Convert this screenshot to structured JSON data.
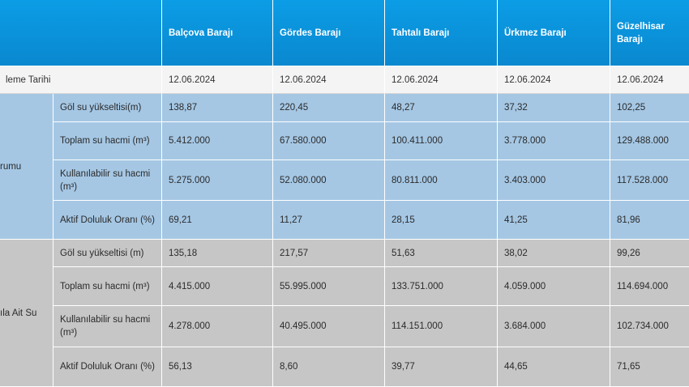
{
  "header": {
    "corner": "",
    "dams": [
      "Balçova Barajı",
      "Gördes Barajı",
      "Tahtalı Barajı",
      "Ürkmez Barajı",
      "Güzelhisar Barajı"
    ]
  },
  "date_row": {
    "label": "leme Tarihi",
    "values": [
      "12.06.2024",
      "12.06.2024",
      "12.06.2024",
      "12.06.2024",
      "12.06.2024"
    ]
  },
  "current_group": {
    "label": "rumu",
    "rows": [
      {
        "metric": "Göl su yükseltisi(m)",
        "values": [
          "138,87",
          "220,45",
          "48,27",
          "37,32",
          "102,25"
        ]
      },
      {
        "metric": "Toplam su hacmi (m³)",
        "values": [
          "5.412.000",
          "67.580.000",
          "100.411.000",
          "3.778.000",
          "129.488.000"
        ]
      },
      {
        "metric": "Kullanılabilir su hacmi (m³)",
        "values": [
          "5.275.000",
          "52.080.000",
          "80.811.000",
          "3.403.000",
          "117.528.000"
        ]
      },
      {
        "metric": "Aktif Doluluk Oranı (%)",
        "values": [
          "69,21",
          "11,27",
          "28,15",
          "41,25",
          "81,96"
        ]
      }
    ]
  },
  "previous_group": {
    "label": "ıla Ait Su",
    "rows": [
      {
        "metric": "Göl su yükseltisi (m)",
        "values": [
          "135,18",
          "217,57",
          "51,63",
          "38,02",
          "99,26"
        ]
      },
      {
        "metric": "Toplam su hacmi (m³)",
        "values": [
          "4.415.000",
          "55.995.000",
          "133.751.000",
          "4.059.000",
          "114.694.000"
        ]
      },
      {
        "metric": "Kullanılabilir su hacmi (m³)",
        "values": [
          "4.278.000",
          "40.495.000",
          "114.151.000",
          "3.684.000",
          "102.734.000"
        ]
      },
      {
        "metric": "Aktif Doluluk Oranı (%)",
        "values": [
          "56,13",
          "8,60",
          "39,77",
          "44,65",
          "71,65"
        ]
      }
    ]
  }
}
